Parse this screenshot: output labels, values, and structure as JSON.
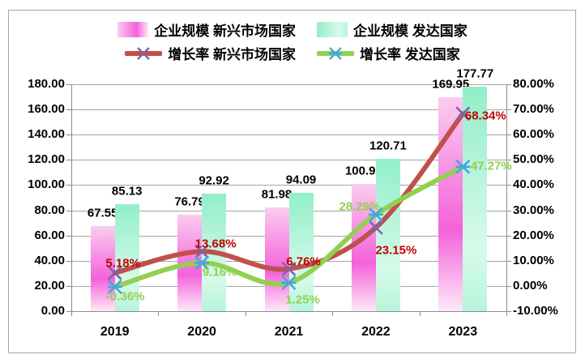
{
  "chart_data": {
    "type": "combo-bar-line",
    "categories": [
      "2019",
      "2020",
      "2021",
      "2022",
      "2023"
    ],
    "bar_series": [
      {
        "name": "企业规模 新兴市场国家",
        "values": [
          67.55,
          76.79,
          81.98,
          100.96,
          169.95
        ],
        "axis": "left",
        "gradient_stops": [
          [
            "#FACDF0",
            0
          ],
          [
            "#F462DA",
            62
          ],
          [
            "#FDE9F8",
            100
          ]
        ]
      },
      {
        "name": "企业规模 发达国家",
        "values": [
          85.13,
          92.92,
          94.09,
          120.71,
          177.77
        ],
        "axis": "left",
        "gradient_stops": [
          [
            "#92EEC9",
            0
          ],
          [
            "#D7FAEB",
            72
          ],
          [
            "#B7F4DB",
            100
          ]
        ]
      }
    ],
    "line_series": [
      {
        "name": "增长率 新兴市场国家",
        "values": [
          5.18,
          13.68,
          6.76,
          23.15,
          68.34
        ],
        "axis": "right",
        "line_color": "#C0504D",
        "marker": "x-marker",
        "marker_color": "#7E62A8",
        "label_color": "#C00000",
        "smoothed": true
      },
      {
        "name": "增长率 发达国家",
        "values": [
          -0.36,
          9.16,
          1.25,
          28.29,
          47.27
        ],
        "axis": "right",
        "line_color": "#92D050",
        "marker": "asterisk-marker",
        "marker_color": "#45A5DC",
        "label_color": "#92D050",
        "smoothed": true
      }
    ],
    "left_axis": {
      "min": 0,
      "max": 180,
      "step": 20,
      "tick_format": "0.00"
    },
    "right_axis": {
      "min": -10,
      "max": 80,
      "step": 10,
      "tick_format": "0.00%"
    },
    "grid": true,
    "legend_position": "top",
    "title": ""
  },
  "legend": {
    "entries": [
      {
        "label": "企业规模 新兴市场国家",
        "kind": "bar"
      },
      {
        "label": "企业规模 发达国家",
        "kind": "bar"
      },
      {
        "label": "增长率 新兴市场国家",
        "kind": "line"
      },
      {
        "label": "增长率 发达国家",
        "kind": "line"
      }
    ]
  },
  "colors": {
    "gridline": "#A6A6A6",
    "axis": "#8C8C8C",
    "frame_border": "#A6A6A6",
    "background": "#FFFFFF",
    "tick_text": "#000000"
  }
}
